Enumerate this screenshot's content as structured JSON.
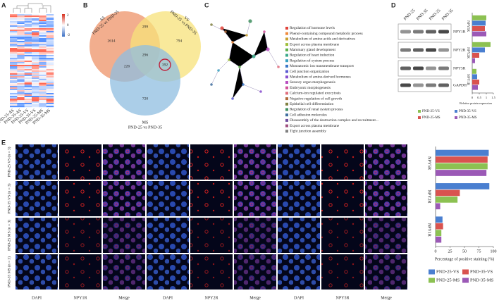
{
  "panel_labels": [
    "A",
    "B",
    "C",
    "D",
    "E"
  ],
  "heatmap": {
    "columns": [
      "PND-25-AS",
      "PND-35-AS",
      "PND-25-VS",
      "PND-35-VS",
      "PND-25-MS",
      "PND-35-MS"
    ],
    "scale_labels": [
      "2",
      "0",
      "-2"
    ]
  },
  "venn": {
    "sets": [
      {
        "name": "AS",
        "subtitle": "PND-25 vs PND-35"
      },
      {
        "name": "VS",
        "subtitle": "PND-25 vs PND-35"
      },
      {
        "name": "MS",
        "subtitle": "PND-25 vs PND-35"
      }
    ],
    "counts": [
      2614,
      299,
      794,
      226,
      296,
      392,
      720
    ]
  },
  "network": {
    "terms": [
      {
        "label": "Regulation of hormone levels",
        "color": "#e0433a"
      },
      {
        "label": "Phenol-containing compound metabolic process",
        "color": "#f08a3c"
      },
      {
        "label": "Metabolism of amino acids and derivatives",
        "color": "#c8a030"
      },
      {
        "label": "Export across plasma membrane",
        "color": "#9fbf3a"
      },
      {
        "label": "Mammary gland development",
        "color": "#5caf4a"
      },
      {
        "label": "Regulation of heart induction",
        "color": "#3aa88a"
      },
      {
        "label": "Regulation of system process",
        "color": "#38a0c0"
      },
      {
        "label": "Monoatomic ion transmembrane transport",
        "color": "#3b78c8"
      },
      {
        "label": "Cell junction organization",
        "color": "#5a5ad0"
      },
      {
        "label": "Metabolism of amine-derived hormones",
        "color": "#8a4fcf"
      },
      {
        "label": "Sensory organ morphogenesis",
        "color": "#b94fc0"
      },
      {
        "label": "Embryonic morphogenesis",
        "color": "#d04f98"
      },
      {
        "label": "Calcium-ion regulated exocytosis",
        "color": "#e06c7c"
      },
      {
        "label": "Negative regulation of cell growth",
        "color": "#b06a3a"
      },
      {
        "label": "Epithelial cell differentiation",
        "color": "#808040"
      },
      {
        "label": "Regulation of renal system process",
        "color": "#3f8f5f"
      },
      {
        "label": "Cell adhesion molecules",
        "color": "#3f6f9f"
      },
      {
        "label": "Disassembly of the destruction complex and recruitment...",
        "color": "#6f4f9f"
      },
      {
        "label": "Export across plasma membrane",
        "color": "#9f4f7f"
      },
      {
        "label": "Tight junction assembly",
        "color": "#7f7f7f"
      }
    ]
  },
  "blot": {
    "lanes": [
      "PND-25",
      "PND-35",
      "PND-25",
      "PND-35"
    ],
    "proteins": [
      "NPY1R",
      "NPY2R",
      "NPY5R",
      "GAPDH"
    ]
  },
  "microscopy": {
    "rows": [
      "PND-25 VS (n = 3)",
      "PND-35 VS (n = 3)",
      "PND-25 MS (n = 3)",
      "PND-35 MS (n = 3)"
    ],
    "columns": [
      "DAPI",
      "NPY1R",
      "Merge",
      "DAPI",
      "NPY2R",
      "Merge",
      "DAPI",
      "NPY5R",
      "Merge"
    ]
  },
  "chart_data": [
    {
      "type": "bar",
      "xlabel": "Relative protein expression",
      "categories": [
        "NPY5R",
        "NPY2R",
        "NPY1R"
      ],
      "series": [
        {
          "name": "PND-25-VS",
          "color": "#8cc152",
          "values": [
            1.0,
            1.3,
            0.3
          ]
        },
        {
          "name": "PND-35-VS",
          "color": "#4a7fd0",
          "values": [
            0.95,
            0.9,
            0.35
          ]
        },
        {
          "name": "PND-25-MS",
          "color": "#d9534f",
          "values": [
            0.9,
            0.5,
            0.5
          ]
        },
        {
          "name": "PND-35-MS",
          "color": "#9b59b6",
          "values": [
            1.0,
            0.2,
            0.4
          ]
        }
      ],
      "xlim": [
        0,
        1.5
      ],
      "xticks": [
        0,
        0.5,
        1,
        1.5
      ]
    },
    {
      "type": "bar",
      "xlabel": "Percentage of positive staining (%)",
      "categories": [
        "NPY5R",
        "NPY2R",
        "NPY1R"
      ],
      "series": [
        {
          "name": "PND-25-VS",
          "color": "#4a7fd0",
          "values": [
            92,
            93,
            12
          ]
        },
        {
          "name": "PND-35-VS",
          "color": "#d9534f",
          "values": [
            90,
            42,
            13
          ]
        },
        {
          "name": "PND-25-MS",
          "color": "#8cc152",
          "values": [
            90,
            38,
            10
          ]
        },
        {
          "name": "PND-35-MS",
          "color": "#9b59b6",
          "values": [
            88,
            8,
            10
          ]
        }
      ],
      "xlim": [
        0,
        100
      ],
      "xticks": [
        0,
        25,
        50,
        75,
        100
      ]
    }
  ]
}
